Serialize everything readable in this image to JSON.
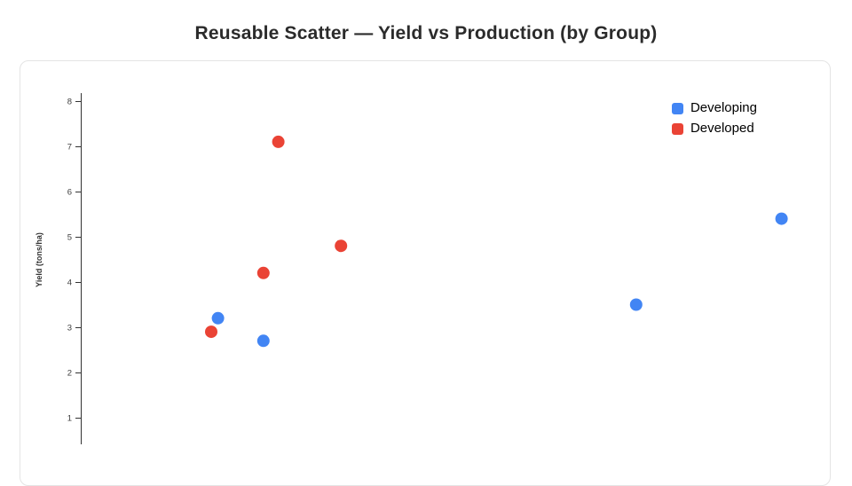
{
  "chart_data": {
    "type": "scatter",
    "title": "Reusable Scatter — Yield vs Production (by Group)",
    "ylabel": "Yield (tons/ha)",
    "xlabel": "",
    "ylim": [
      0,
      8
    ],
    "y_ticks": [
      1,
      2,
      3,
      4,
      5,
      6,
      7,
      8
    ],
    "grid": false,
    "legend_position": "top-right",
    "x_axis_visible": false,
    "series": [
      {
        "name": "Developing",
        "color": "#4285F4",
        "points": [
          {
            "x_frac": 0.184,
            "y": 3.2
          },
          {
            "x_frac": 0.245,
            "y": 2.7
          },
          {
            "x_frac": 0.745,
            "y": 3.5
          },
          {
            "x_frac": 0.94,
            "y": 5.4
          }
        ]
      },
      {
        "name": "Developed",
        "color": "#EA4335",
        "points": [
          {
            "x_frac": 0.175,
            "y": 2.9
          },
          {
            "x_frac": 0.245,
            "y": 4.2
          },
          {
            "x_frac": 0.265,
            "y": 7.1
          },
          {
            "x_frac": 0.349,
            "y": 4.8
          }
        ]
      }
    ]
  }
}
